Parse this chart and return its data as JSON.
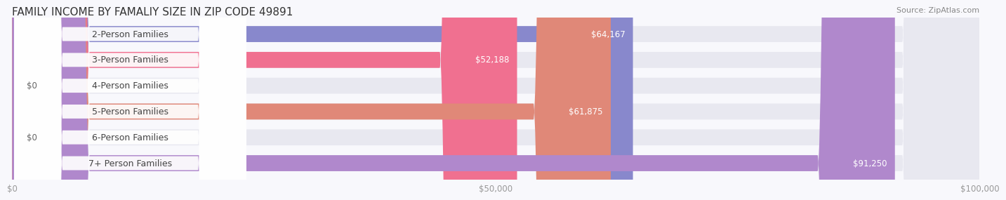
{
  "title": "FAMILY INCOME BY FAMALIY SIZE IN ZIP CODE 49891",
  "source": "Source: ZipAtlas.com",
  "categories": [
    "2-Person Families",
    "3-Person Families",
    "4-Person Families",
    "5-Person Families",
    "6-Person Families",
    "7+ Person Families"
  ],
  "values": [
    64167,
    52188,
    0,
    61875,
    0,
    91250
  ],
  "bar_colors": [
    "#8888cc",
    "#f07090",
    "#f5c899",
    "#e08878",
    "#a8c8e8",
    "#b088cc"
  ],
  "label_colors": [
    "#ffffff",
    "#555555",
    "#555555",
    "#ffffff",
    "#555555",
    "#ffffff"
  ],
  "bar_bg_color": "#f0f0f5",
  "xlim": [
    0,
    100000
  ],
  "xticks": [
    0,
    50000,
    100000
  ],
  "xtick_labels": [
    "$0",
    "$50,000",
    "$100,000"
  ],
  "value_labels": [
    "$64,167",
    "$52,188",
    "$0",
    "$61,875",
    "$0",
    "$91,250"
  ],
  "title_fontsize": 11,
  "source_fontsize": 8,
  "bar_label_fontsize": 9,
  "value_label_fontsize": 8.5,
  "background_color": "#f8f8fc",
  "fig_width": 14.06,
  "fig_height": 3.05
}
